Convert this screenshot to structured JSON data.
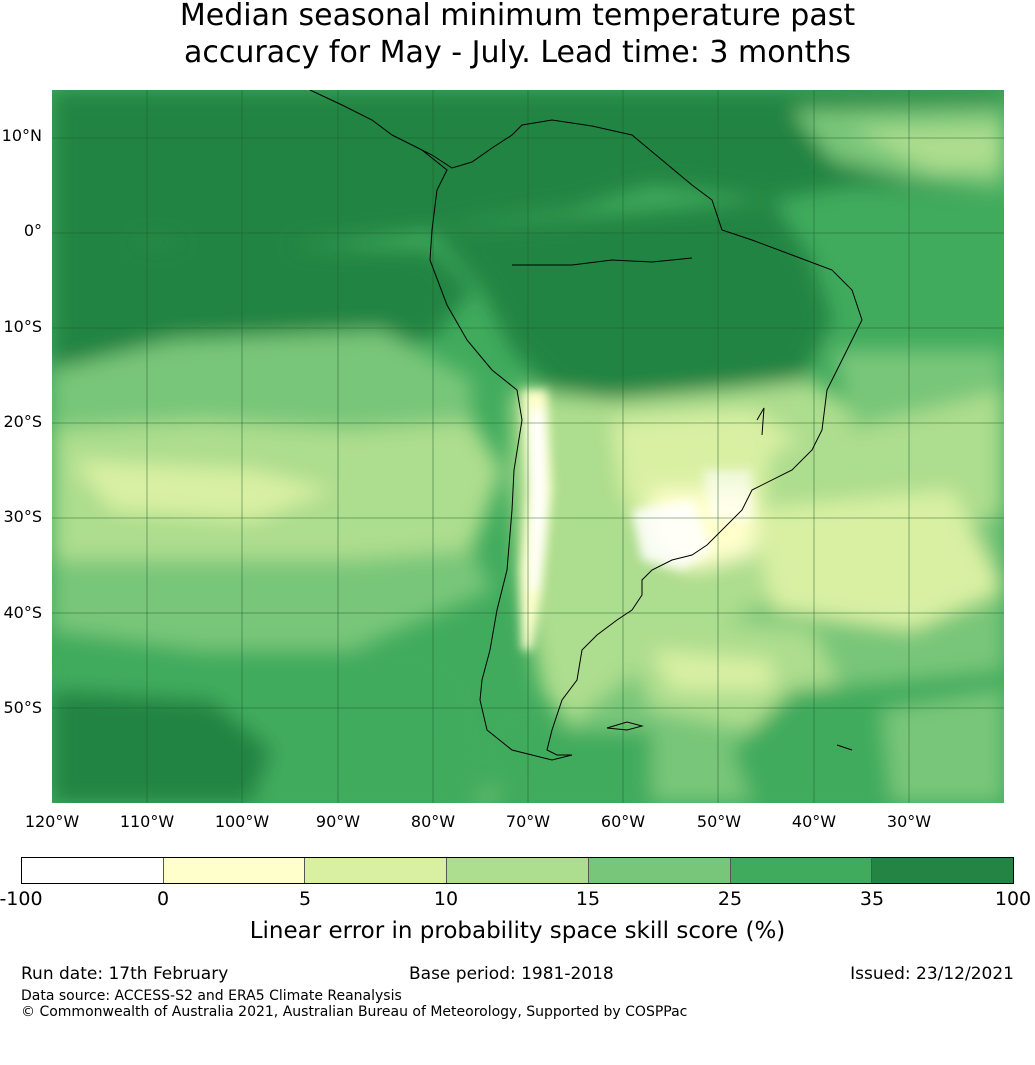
{
  "title": {
    "line1": "Median seasonal minimum temperature past",
    "line2": "accuracy for May - July. Lead time: 3 months"
  },
  "map": {
    "lat_labels": [
      "10°N",
      "0°",
      "10°S",
      "20°S",
      "30°S",
      "40°S",
      "50°S"
    ],
    "lon_labels": [
      "120°W",
      "110°W",
      "100°W",
      "90°W",
      "80°W",
      "70°W",
      "60°W",
      "50°W",
      "40°W",
      "30°W"
    ],
    "extent": {
      "lon": [
        -120,
        -20
      ],
      "lat": [
        -60,
        15
      ]
    }
  },
  "colorbar": {
    "ticks": [
      "-100",
      "0",
      "5",
      "10",
      "15",
      "25",
      "35",
      "100"
    ],
    "colors": [
      "#ffffff",
      "#ffffcc",
      "#d9f0a3",
      "#addd8e",
      "#78c679",
      "#41ab5d",
      "#238443"
    ],
    "label": "Linear error in probability space skill score (%)"
  },
  "footer": {
    "run_date": "Run date: 17th February",
    "base_period": "Base period: 1981-2018",
    "issued": "Issued: 23/12/2021",
    "data_source": "Data source: ACCESS-S2 and ERA5 Climate Reanalysis",
    "copyright": "© Commonwealth of Australia 2021, Australian Bureau of Meteorology, Supported by COSPPac"
  }
}
